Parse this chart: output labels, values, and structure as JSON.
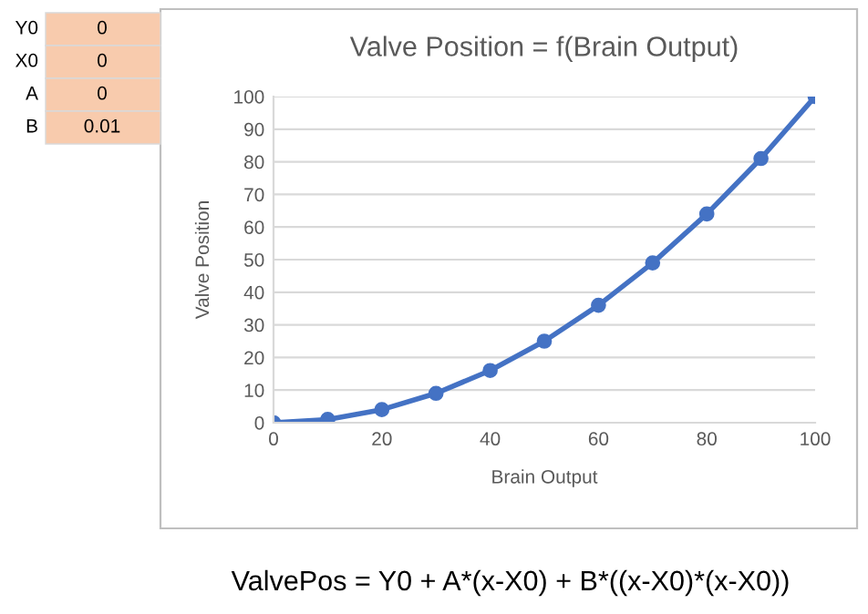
{
  "chart_data": {
    "type": "line",
    "title": "Valve Position = f(Brain Output)",
    "xlabel": "Brain Output",
    "ylabel": "Valve Position",
    "x": [
      0,
      10,
      20,
      30,
      40,
      50,
      60,
      70,
      80,
      90,
      100
    ],
    "series": [
      {
        "color": "#4472c4",
        "values": [
          0,
          1,
          4,
          9,
          16,
          25,
          36,
          49,
          64,
          81,
          100
        ]
      }
    ],
    "xlim": [
      0,
      100
    ],
    "xticks": [
      0,
      20,
      40,
      60,
      80,
      100
    ],
    "ylim": [
      0,
      100
    ],
    "yticks": [
      0,
      10,
      20,
      30,
      40,
      50,
      60,
      70,
      80,
      90,
      100
    ],
    "grid": "y",
    "marker": "circle",
    "line_style": "solid",
    "annotations": [
      "Y0",
      "0",
      "X0",
      "0",
      "A",
      "0",
      "B",
      "0.01",
      "ValvePos = Y0 + A*(x-X0) + B*((x-X0)*(x-X0))"
    ]
  }
}
